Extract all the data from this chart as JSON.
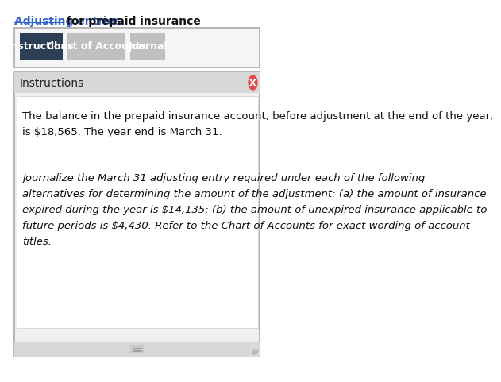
{
  "title_link": "Adjusting entries",
  "title_rest": " for prepaid insurance",
  "tab_buttons": [
    "Instructions",
    "Chart of Accounts",
    "Journal"
  ],
  "tab_active": 0,
  "tab_active_color": "#2d3f54",
  "tab_inactive_color": "#c0c0c0",
  "tab_text_color": "#ffffff",
  "panel_header": "Instructions",
  "panel_bg": "#f0f0f0",
  "panel_header_bg": "#d8d8d8",
  "panel_border_color": "#aaaaaa",
  "close_btn_color": "#e05050",
  "close_x_color": "#ffffff",
  "para1": "The balance in the prepaid insurance account, before adjustment at the end of the year,\nis $18,565. The year end is March 31.",
  "para2": "Journalize the March 31 adjusting entry required under each of the following\nalternatives for determining the amount of the adjustment: (a) the amount of insurance\nexpired during the year is $14,135; (b) the amount of unexpired insurance applicable to\nfuture periods is $4,430. Refer to the Chart of Accounts for exact wording of account\ntitles.",
  "para1_fontsize": 9.5,
  "para2_fontsize": 9.5,
  "bg_color": "#ffffff",
  "outer_border_color": "#aaaaaa",
  "scrollbar_color": "#c8c8c8",
  "link_color": "#3366cc"
}
